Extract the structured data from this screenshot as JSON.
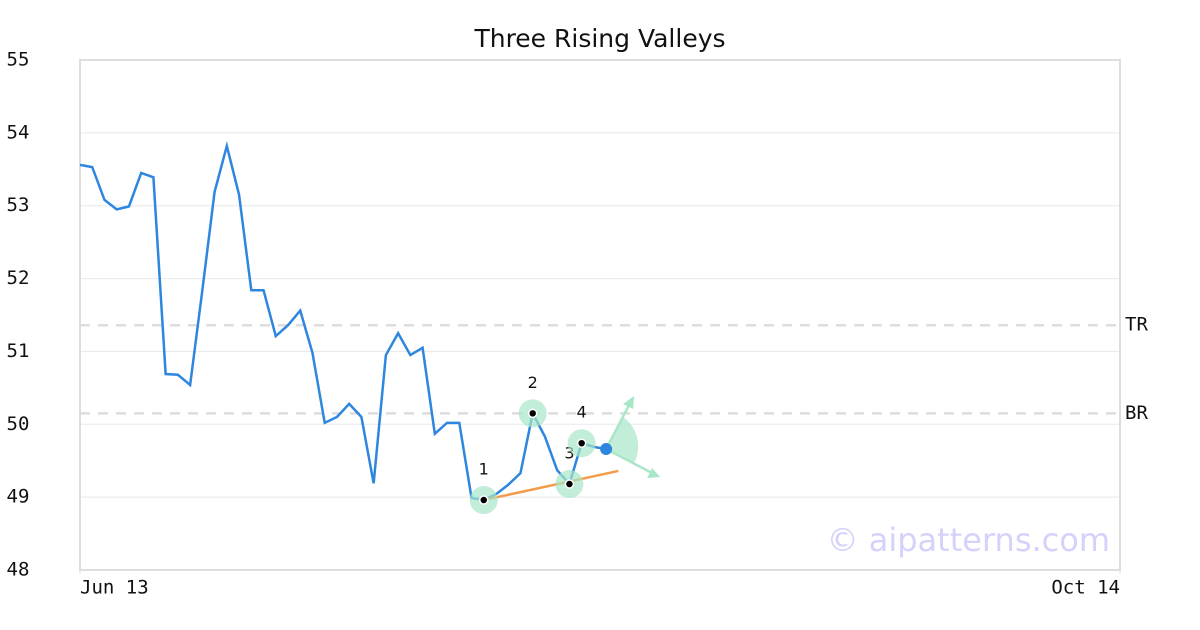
{
  "chart_data": {
    "type": "line",
    "title": "Three Rising Valleys",
    "x": [
      0,
      1,
      2,
      3,
      4,
      5,
      6,
      7,
      8,
      9,
      10,
      11,
      12,
      13,
      14,
      15,
      16,
      17,
      18,
      19,
      20,
      21,
      22,
      23,
      24,
      25,
      26,
      27,
      28,
      29,
      30,
      31,
      32,
      33,
      34,
      35,
      36,
      37,
      38,
      39,
      40,
      41,
      42,
      43
    ],
    "series": [
      {
        "color": "#2e86de",
        "values": [
          53.56,
          53.53,
          53.08,
          52.95,
          52.99,
          53.45,
          53.39,
          50.69,
          50.68,
          50.54,
          51.84,
          53.19,
          53.82,
          53.15,
          51.84,
          51.84,
          51.21,
          51.36,
          51.56,
          50.98,
          50.02,
          50.1,
          50.28,
          50.1,
          49.19,
          50.95,
          51.25,
          50.95,
          51.05,
          49.87,
          50.02,
          50.02,
          48.99,
          48.96,
          49.04,
          49.17,
          49.33,
          50.15,
          49.83,
          49.37,
          49.18,
          49.74,
          49.69,
          49.66
        ]
      }
    ],
    "xlim": [
      0,
      85
    ],
    "xticks": [
      {
        "value": 0,
        "label": "Jun 13"
      },
      {
        "value": 85,
        "label": "Oct 14"
      }
    ],
    "ylim": [
      48,
      55
    ],
    "yticks": [
      48,
      49,
      50,
      51,
      52,
      53,
      54,
      55
    ],
    "grid": true,
    "levels": [
      {
        "label": "TR",
        "value": 51.36
      },
      {
        "label": "BR",
        "value": 50.15
      }
    ],
    "markers": [
      {
        "label": "1",
        "x": 33,
        "y": 48.96
      },
      {
        "label": "2",
        "x": 37,
        "y": 50.15
      },
      {
        "label": "3",
        "x": 40,
        "y": 49.18
      },
      {
        "label": "4",
        "x": 41,
        "y": 49.74
      }
    ],
    "current": {
      "x": 43,
      "y": 49.66
    },
    "trendline": {
      "color": "#f39c4a",
      "x": [
        33,
        44
      ],
      "y": [
        48.96,
        49.36
      ]
    },
    "watermark": "© aipatterns.com"
  }
}
